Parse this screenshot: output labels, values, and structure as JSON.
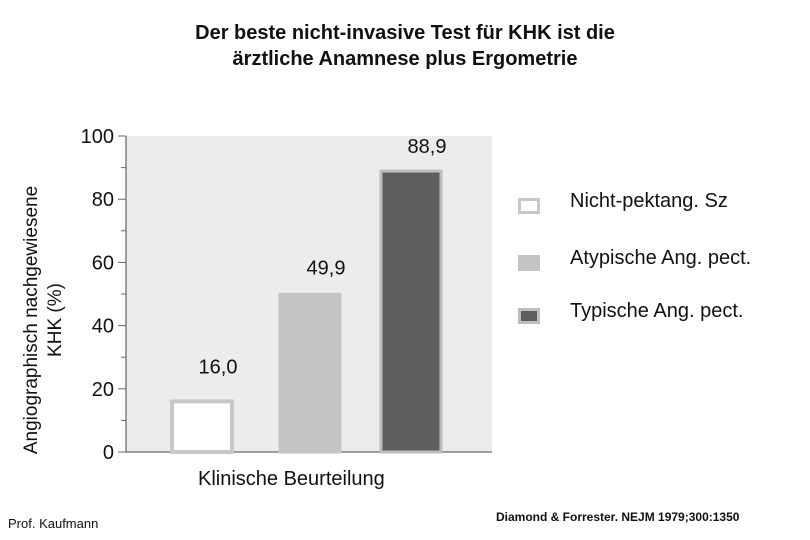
{
  "title": {
    "line1": "Der beste nicht-invasive Test  für KHK ist die",
    "line2": "ärztliche Anamnese plus Ergometrie"
  },
  "credits": {
    "author": "Prof. Kaufmann",
    "source": "Diamond & Forrester. NEJM 1979;300:1350"
  },
  "chart_data": {
    "type": "bar",
    "title": "Der beste nicht-invasive Test  für KHK ist die ärztliche Anamnese plus Ergometrie",
    "xlabel": "Klinische Beurteilung",
    "ylabel_line1": "Angiographisch nachgewiesene",
    "ylabel_line2": "KHK (%)",
    "ylim": [
      0,
      100
    ],
    "yticks": [
      0,
      20,
      40,
      60,
      80,
      100
    ],
    "grid": false,
    "legend_position": "right",
    "series": [
      {
        "name": "Nicht-pektang. Sz",
        "value": 16.0,
        "label": "16,0",
        "fill": "#ffffff",
        "stroke": "#c8c8c8"
      },
      {
        "name": "Atypische Ang. pect.",
        "value": 49.9,
        "label": "49,9",
        "fill": "#c4c4c4",
        "stroke": "#c4c4c4"
      },
      {
        "name": "Typische Ang. pect.",
        "value": 88.9,
        "label": "88,9",
        "fill": "#5e5e5e",
        "stroke": "#bdbdbd"
      }
    ],
    "plot_background": "#ececec"
  }
}
